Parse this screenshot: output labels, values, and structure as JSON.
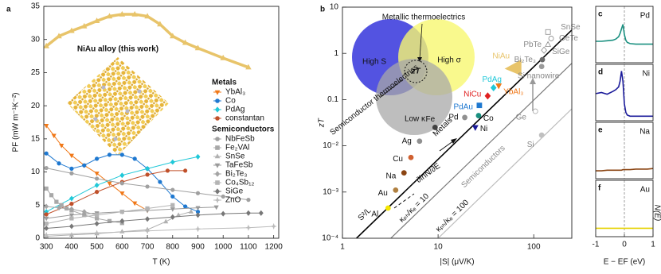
{
  "chart_data": [
    {
      "type": "line",
      "panel": "a",
      "xlabel": "T (K)",
      "ylabel": "PF (mW m⁻¹K⁻²)",
      "xlim": [
        290,
        1220
      ],
      "ylim": [
        0,
        35
      ],
      "xticks": [
        300,
        400,
        500,
        600,
        700,
        800,
        900,
        1000,
        1100,
        1200
      ],
      "yticks": [
        0,
        5,
        10,
        15,
        20,
        25,
        30,
        35
      ],
      "annotation": "NiAu alloy (this work)",
      "highlight": {
        "color": "#e8c46a",
        "marker": "triangle",
        "x": [
          300,
          350,
          400,
          450,
          500,
          550,
          600,
          650,
          700,
          750,
          800,
          850,
          900,
          1000,
          1100
        ],
        "values": [
          29,
          30.5,
          31.3,
          32,
          32.8,
          33.5,
          33.8,
          33.8,
          33.5,
          32.3,
          30.5,
          29.5,
          28.7,
          27.2,
          25.8
        ]
      },
      "series_groups": [
        {
          "name": "Metals",
          "series": [
            {
              "name": "YbAl₃",
              "color": "#f07818",
              "marker": "triangle-down",
              "x": [
                300,
                330,
                360,
                400,
                450,
                500,
                550,
                600,
                650,
                700
              ],
              "values": [
                17,
                15.5,
                14,
                12.5,
                11,
                9.8,
                8.3,
                6.8,
                5.3,
                4.2
              ]
            },
            {
              "name": "Co",
              "color": "#1e78d0",
              "marker": "circle",
              "x": [
                300,
                350,
                400,
                450,
                500,
                550,
                600,
                650,
                700,
                750,
                800,
                850,
                900
              ],
              "values": [
                12.8,
                11.3,
                10.5,
                11,
                12,
                12.6,
                12.6,
                12,
                10.5,
                8.5,
                6.3,
                4.8,
                4
              ]
            },
            {
              "name": "PdAg",
              "color": "#20c8d8",
              "marker": "diamond",
              "x": [
                300,
                400,
                500,
                600,
                700,
                800,
                900
              ],
              "values": [
                4,
                6,
                8,
                9.5,
                10.5,
                11.5,
                12.3
              ]
            },
            {
              "name": "constantan",
              "color": "#c0502a",
              "marker": "circle",
              "x": [
                300,
                400,
                500,
                600,
                700,
                780,
                850
              ],
              "values": [
                3.6,
                5.2,
                7,
                8.5,
                9.6,
                10.2,
                10.2
              ]
            }
          ]
        },
        {
          "name": "Semiconductors",
          "series": [
            {
              "name": "NbFeSb",
              "color": "#a0a0a0",
              "marker": "circle",
              "x": [
                300,
                400,
                500,
                600,
                700,
                800,
                900,
                1000,
                1100
              ],
              "values": [
                10.6,
                9.8,
                9,
                8.3,
                7.8,
                7.3,
                6.8,
                6.3,
                5.8
              ]
            },
            {
              "name": "Fe₂VAl",
              "color": "#a8a8a8",
              "marker": "square",
              "x": [
                300,
                320,
                340,
                360,
                380,
                400,
                450,
                500,
                550,
                600
              ],
              "values": [
                7.5,
                6.5,
                5.5,
                5,
                4.5,
                4.2,
                3.5,
                3,
                2.6,
                2.3
              ]
            },
            {
              "name": "SnSe",
              "color": "#b0b0b0",
              "marker": "triangle",
              "x": [
                300,
                400,
                500,
                600,
                700,
                773,
                823,
                873
              ],
              "values": [
                0.3,
                0.5,
                0.7,
                1,
                1.3,
                2.5,
                3.5,
                4
              ]
            },
            {
              "name": "TaFeSb",
              "color": "#9a9a9a",
              "marker": "triangle-down",
              "x": [
                300,
                400,
                500,
                600,
                700,
                800,
                900,
                973
              ],
              "values": [
                3,
                3.5,
                3.8,
                4,
                4.2,
                4.4,
                4.6,
                4.7
              ]
            },
            {
              "name": "Bi₂Te₃",
              "color": "#a4a4a4",
              "marker": "diamond",
              "x": [
                300,
                350,
                400,
                450,
                500
              ],
              "values": [
                4.8,
                4.6,
                4.4,
                4,
                3.5
              ]
            },
            {
              "name": "Co₄Sb₁₂",
              "color": "#b4b4b4",
              "marker": "square",
              "x": [
                300,
                400,
                500,
                600,
                700,
                800
              ],
              "values": [
                2.2,
                3,
                3.5,
                4,
                4.5,
                5
              ]
            },
            {
              "name": "SiGe",
              "color": "#777777",
              "marker": "diamond",
              "x": [
                300,
                400,
                500,
                600,
                700,
                800,
                900,
                1000,
                1100,
                1150
              ],
              "values": [
                1.5,
                1.8,
                2.2,
                2.6,
                2.9,
                3.2,
                3.5,
                3.7,
                3.8,
                3.8
              ]
            },
            {
              "name": "ZnO",
              "color": "#bbbbbb",
              "marker": "star",
              "x": [
                300,
                500,
                700,
                900,
                1100,
                1200
              ],
              "values": [
                0.5,
                0.8,
                1.1,
                1.4,
                1.6,
                1.8
              ]
            }
          ]
        }
      ]
    },
    {
      "type": "scatter",
      "panel": "b",
      "xlabel": "|S| (μV/K)",
      "ylabel": "zT",
      "xscale": "log",
      "yscale": "log",
      "xlim": [
        1,
        250
      ],
      "ylim": [
        0.0001,
        10
      ],
      "xticks": [
        1,
        10,
        100
      ],
      "yticks": [
        10,
        1,
        0.1,
        {
          "value": 0.01,
          "label": "10⁻²"
        },
        {
          "value": 0.001,
          "label": "10⁻³"
        },
        {
          "value": 0.0001,
          "label": "10⁻⁴"
        }
      ],
      "annotations": [
        "High S",
        "High σ",
        "Low κ",
        "zT",
        "Metallic thermoelectrics",
        "Semiconductor thermoelectrics",
        "Metals",
        "∂lnN/∂E",
        "Semiconductors"
      ],
      "lines": [
        {
          "label": "S²/L",
          "color": "#000000",
          "x": [
            1.4,
            250
          ],
          "y": [
            0.0001,
            3.2
          ]
        },
        {
          "label": "κₚₕ/κₑ = 10",
          "color": "#7a7a7a",
          "x": [
            3.2,
            250
          ],
          "y": [
            0.0001,
            0.61
          ]
        },
        {
          "label": "κₚₕ/κₑ = 100",
          "color": "#bdbdbd",
          "x": [
            10,
            250
          ],
          "y": [
            0.0001,
            0.063
          ]
        }
      ],
      "points": [
        {
          "label": "Al",
          "x": 3.0,
          "y": 0.00045,
          "color": "#f5e600",
          "marker": "circle",
          "filled": true
        },
        {
          "label": "Au",
          "x": 3.6,
          "y": 0.0011,
          "color": "#b08040",
          "marker": "circle",
          "filled": true
        },
        {
          "label": "Na",
          "x": 4.4,
          "y": 0.0026,
          "color": "#8b4513",
          "marker": "circle",
          "filled": true
        },
        {
          "label": "Cu",
          "x": 5.2,
          "y": 0.0056,
          "color": "#d06030",
          "marker": "circle",
          "filled": true
        },
        {
          "label": "Ag",
          "x": 6.4,
          "y": 0.0126,
          "color": "#909090",
          "marker": "circle",
          "filled": true
        },
        {
          "label": "Fe",
          "x": 9.3,
          "y": 0.025,
          "color": "#404040",
          "marker": "circle",
          "filled": true
        },
        {
          "label": "Pd",
          "x": 19,
          "y": 0.041,
          "color": "#909090",
          "marker": "circle",
          "filled": true
        },
        {
          "label": "Ni",
          "x": 24.5,
          "y": 0.025,
          "color": "#1a1a9a",
          "marker": "triangle-down",
          "filled": true
        },
        {
          "label": "Co",
          "x": 26.5,
          "y": 0.045,
          "color": "#1a9080",
          "marker": "circle",
          "filled": true
        },
        {
          "label": "PdAu",
          "x": 27,
          "y": 0.075,
          "color": "#1e78d0",
          "marker": "square",
          "filled": true
        },
        {
          "label": "NiCu",
          "x": 33,
          "y": 0.12,
          "color": "#e02020",
          "marker": "diamond",
          "filled": true
        },
        {
          "label": "PdAg",
          "x": 38,
          "y": 0.18,
          "color": "#20c8d8",
          "marker": "diamond",
          "filled": true
        },
        {
          "label": "YbAl₃",
          "x": 43,
          "y": 0.2,
          "color": "#f07818",
          "marker": "triangle-down",
          "filled": true
        },
        {
          "label": "NiAu",
          "x": 62,
          "y": 0.5,
          "color": "#e8c46a",
          "marker": "big-triangle",
          "filled": true
        },
        {
          "label": "SnSe",
          "x": 141,
          "y": 2.9,
          "color": "#8a8a8a",
          "marker": "square",
          "filled": false
        },
        {
          "label": "GeTe",
          "x": 152,
          "y": 2.1,
          "color": "#8a8a8a",
          "marker": "circle",
          "filled": false
        },
        {
          "label": "PbTe",
          "x": 141,
          "y": 1.55,
          "color": "#8a8a8a",
          "marker": "triangle",
          "filled": false
        },
        {
          "label": "SiGe",
          "x": 128,
          "y": 1.17,
          "color": "#8a8a8a",
          "marker": "diamond",
          "filled": false
        },
        {
          "label": "Bi₂Te₃",
          "x": 123,
          "y": 0.73,
          "color": "#6a6a6a",
          "marker": "circle",
          "filled": true
        },
        {
          "label": "Si nanowire",
          "x": 121,
          "y": 0.52,
          "color": "#9a9a9a",
          "marker": "circle",
          "filled": true
        },
        {
          "label": "Ge",
          "x": 104,
          "y": 0.056,
          "color": "#a8a8a8",
          "marker": "circle",
          "filled": false
        },
        {
          "label": "Si",
          "x": 121,
          "y": 0.017,
          "color": "#c0c0c0",
          "marker": "circle",
          "filled": true
        }
      ]
    },
    {
      "type": "line",
      "panel": "c",
      "label": "Pd",
      "color": "#1a9080",
      "xlim": [
        -1,
        1
      ],
      "ylim": [
        0,
        1
      ],
      "x": [
        -1,
        -0.8,
        -0.6,
        -0.4,
        -0.3,
        -0.2,
        -0.15,
        -0.1,
        -0.05,
        0,
        0.05,
        0.1,
        0.2,
        0.4,
        0.6,
        0.8,
        1
      ],
      "values": [
        0.38,
        0.38,
        0.39,
        0.4,
        0.42,
        0.46,
        0.52,
        0.6,
        0.68,
        0.5,
        0.4,
        0.36,
        0.34,
        0.33,
        0.33,
        0.33,
        0.33
      ]
    },
    {
      "type": "line",
      "panel": "d",
      "label": "Ni",
      "color": "#1a1a9a",
      "xlim": [
        -1,
        1
      ],
      "ylim": [
        0,
        1
      ],
      "x": [
        -1,
        -0.8,
        -0.6,
        -0.4,
        -0.3,
        -0.2,
        -0.15,
        -0.1,
        -0.05,
        0,
        0.05,
        0.1,
        0.2,
        0.4,
        0.6,
        0.8,
        1
      ],
      "values": [
        0.48,
        0.5,
        0.47,
        0.52,
        0.55,
        0.6,
        0.7,
        0.88,
        0.7,
        0.3,
        0.15,
        0.1,
        0.08,
        0.08,
        0.08,
        0.08,
        0.08
      ]
    },
    {
      "type": "line",
      "panel": "e",
      "label": "Na",
      "color": "#8b4513",
      "xlim": [
        -1,
        1
      ],
      "ylim": [
        0,
        1
      ],
      "x": [
        -1,
        -0.8,
        -0.6,
        -0.4,
        -0.3,
        -0.2,
        -0.15,
        -0.1,
        -0.05,
        0,
        0.05,
        0.1,
        0.2,
        0.4,
        0.6,
        0.8,
        1
      ],
      "values": [
        0.14,
        0.14,
        0.15,
        0.15,
        0.15,
        0.15,
        0.15,
        0.15,
        0.16,
        0.16,
        0.16,
        0.16,
        0.16,
        0.17,
        0.17,
        0.17,
        0.18
      ]
    },
    {
      "type": "line",
      "panel": "f",
      "label": "Au",
      "color": "#e6d200",
      "xlim": [
        -1,
        1
      ],
      "ylim": [
        0,
        1
      ],
      "xticks": [
        -1,
        0,
        1
      ],
      "xlabel": "E − EF (eV)",
      "ylabel": "N(E)",
      "x": [
        -1,
        -0.8,
        -0.6,
        -0.4,
        -0.3,
        -0.2,
        -0.15,
        -0.1,
        -0.05,
        0,
        0.05,
        0.1,
        0.2,
        0.4,
        0.6,
        0.8,
        1
      ],
      "values": [
        0.15,
        0.15,
        0.15,
        0.15,
        0.15,
        0.15,
        0.15,
        0.15,
        0.15,
        0.15,
        0.15,
        0.15,
        0.15,
        0.15,
        0.15,
        0.15,
        0.15
      ]
    }
  ]
}
